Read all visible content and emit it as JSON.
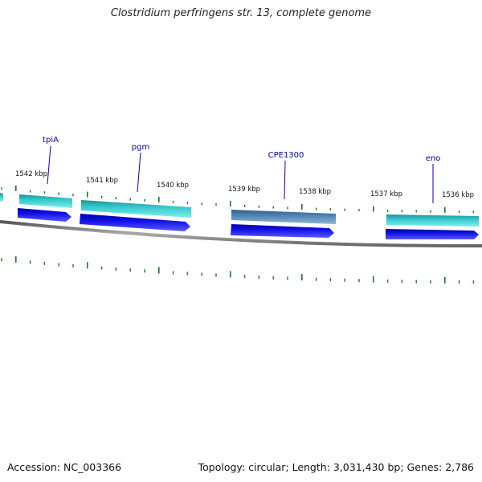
{
  "title": "Clostridium perfringens str. 13, complete genome",
  "footer": {
    "accession": "Accession: NC_003366",
    "summary": "Topology: circular; Length: 3,031,430 bp; Genes: 2,786"
  },
  "colors": {
    "backbone": "#777777",
    "tick": "#1a7a1a",
    "cds": "#1010e0",
    "gene_teal": "#30cccc",
    "gene_steel": "#4f82b0",
    "label": "#0000aa"
  },
  "kbp_labels": [
    {
      "kbp": 1542,
      "text": "1542 kbp"
    },
    {
      "kbp": 1541,
      "text": "1541 kbp"
    },
    {
      "kbp": 1540,
      "text": "1540 kbp"
    },
    {
      "kbp": 1539,
      "text": "1539 kbp"
    },
    {
      "kbp": 1538,
      "text": "1538 kbp"
    },
    {
      "kbp": 1537,
      "text": "1537 kbp"
    },
    {
      "kbp": 1536,
      "text": "1536 kbp"
    }
  ],
  "gene_labels": [
    {
      "name": "tpiA"
    },
    {
      "name": "pgm"
    },
    {
      "name": "CPE1300"
    },
    {
      "name": "eno"
    }
  ]
}
